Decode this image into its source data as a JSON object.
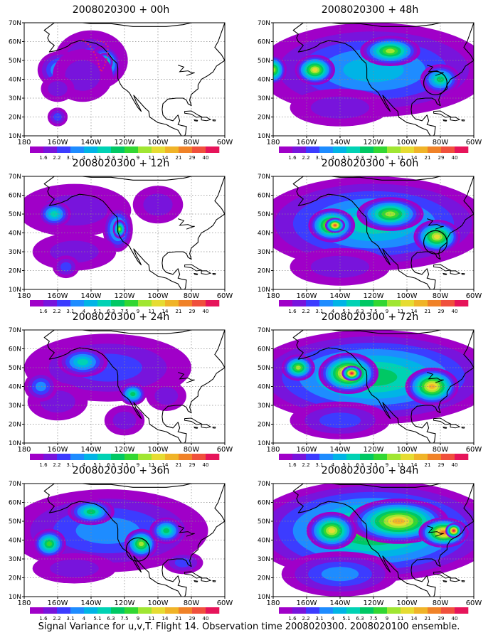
{
  "caption": "Signal Variance for u,v,T. Flight 14. Observation time 2008020300. 2008020100 ensemble.",
  "colors": {
    "background": "#ffffff",
    "land_outline": "#000000",
    "grid": "#8a8a8a",
    "marker_circle": "#000000",
    "flight_track": "#e0206a",
    "no_data": "#ffffff"
  },
  "chart_data": {
    "type": "heatmap",
    "projection": "lat-lon map (contour-filled)",
    "x_ticks": [
      "180",
      "160W",
      "140W",
      "120W",
      "100W",
      "80W",
      "60W"
    ],
    "y_ticks": [
      "10N",
      "20N",
      "30N",
      "40N",
      "50N",
      "60N",
      "70N"
    ],
    "xlim": [
      -180,
      -60
    ],
    "ylim": [
      10,
      70
    ],
    "grid": true,
    "colorbar": {
      "labels": [
        "1.6",
        "2.2",
        "3.1",
        "4",
        "5.1",
        "6.3",
        "7.5",
        "9",
        "11",
        "14",
        "21",
        "29",
        "40"
      ],
      "colors": [
        "#a000c8",
        "#7814dc",
        "#3c3cff",
        "#1e8cff",
        "#00b4e6",
        "#00d2b4",
        "#00c864",
        "#32d732",
        "#a0e632",
        "#e6dc32",
        "#f0b428",
        "#f08228",
        "#f0503c",
        "#e6145a"
      ]
    },
    "panels": [
      {
        "title": "2008020300 + 00h",
        "blobs": [
          {
            "lon": -140,
            "lat": 50,
            "rx": 22,
            "ry": 16,
            "v": 2
          },
          {
            "lon": -132,
            "lat": 48,
            "rx": 10,
            "ry": 10,
            "v": 7
          },
          {
            "lon": -132,
            "lat": 49,
            "rx": 5,
            "ry": 5,
            "v": 9
          },
          {
            "lon": -158,
            "lat": 45,
            "rx": 14,
            "ry": 10,
            "v": 4
          },
          {
            "lon": -145,
            "lat": 42,
            "rx": 18,
            "ry": 14,
            "v": 1
          },
          {
            "lon": -160,
            "lat": 35,
            "rx": 10,
            "ry": 7,
            "v": 1
          },
          {
            "lon": -160,
            "lat": 20,
            "rx": 6,
            "ry": 5,
            "v": 2
          }
        ],
        "flight_track": [
          [
            -145,
            61
          ],
          [
            -141,
            58
          ],
          [
            -138,
            54
          ],
          [
            -136,
            50
          ],
          [
            -135,
            46
          ],
          [
            -134,
            44
          ],
          [
            -132,
            47
          ],
          [
            -130,
            53
          ],
          [
            -130,
            58
          ],
          [
            -133,
            60
          ],
          [
            -138,
            61
          ]
        ],
        "circle": null
      },
      {
        "title": "2008020300 + 12h",
        "blobs": [
          {
            "lon": -150,
            "lat": 52,
            "rx": 34,
            "ry": 14,
            "v": 1
          },
          {
            "lon": -162,
            "lat": 50,
            "rx": 10,
            "ry": 7,
            "v": 5
          },
          {
            "lon": -124,
            "lat": 42,
            "rx": 9,
            "ry": 12,
            "v": 5
          },
          {
            "lon": -123,
            "lat": 42,
            "rx": 4,
            "ry": 5,
            "v": 8
          },
          {
            "lon": -150,
            "lat": 30,
            "rx": 25,
            "ry": 10,
            "v": 1
          },
          {
            "lon": -100,
            "lat": 55,
            "rx": 15,
            "ry": 10,
            "v": 1
          },
          {
            "lon": -155,
            "lat": 22,
            "rx": 8,
            "ry": 6,
            "v": 2
          }
        ],
        "flight_track": null,
        "circle": null
      },
      {
        "title": "2008020300 + 24h",
        "blobs": [
          {
            "lon": -130,
            "lat": 50,
            "rx": 50,
            "ry": 18,
            "v": 2
          },
          {
            "lon": -145,
            "lat": 53,
            "rx": 15,
            "ry": 8,
            "v": 5
          },
          {
            "lon": -115,
            "lat": 36,
            "rx": 8,
            "ry": 6,
            "v": 6
          },
          {
            "lon": -160,
            "lat": 32,
            "rx": 18,
            "ry": 10,
            "v": 1
          },
          {
            "lon": -170,
            "lat": 40,
            "rx": 10,
            "ry": 8,
            "v": 3
          },
          {
            "lon": -95,
            "lat": 35,
            "rx": 12,
            "ry": 8,
            "v": 1
          },
          {
            "lon": -120,
            "lat": 22,
            "rx": 12,
            "ry": 8,
            "v": 1
          }
        ],
        "flight_track": null,
        "circle": null
      },
      {
        "title": "2008020300 + 36h",
        "blobs": [
          {
            "lon": -130,
            "lat": 45,
            "rx": 60,
            "ry": 22,
            "v": 3
          },
          {
            "lon": -165,
            "lat": 38,
            "rx": 10,
            "ry": 8,
            "v": 7
          },
          {
            "lon": -110,
            "lat": 38,
            "rx": 10,
            "ry": 8,
            "v": 8
          },
          {
            "lon": -140,
            "lat": 55,
            "rx": 14,
            "ry": 7,
            "v": 6
          },
          {
            "lon": -95,
            "lat": 45,
            "rx": 10,
            "ry": 7,
            "v": 6
          },
          {
            "lon": -150,
            "lat": 25,
            "rx": 25,
            "ry": 8,
            "v": 1
          },
          {
            "lon": -85,
            "lat": 28,
            "rx": 12,
            "ry": 6,
            "v": 2
          }
        ],
        "flight_track": null,
        "circle": {
          "lon": -112,
          "lat": 35,
          "r": 7
        }
      },
      {
        "title": "2008020300 + 48h",
        "blobs": [
          {
            "lon": -120,
            "lat": 45,
            "rx": 70,
            "ry": 25,
            "v": 4
          },
          {
            "lon": -155,
            "lat": 45,
            "rx": 12,
            "ry": 8,
            "v": 9
          },
          {
            "lon": -180,
            "lat": 45,
            "rx": 8,
            "ry": 8,
            "v": 8
          },
          {
            "lon": -110,
            "lat": 55,
            "rx": 18,
            "ry": 8,
            "v": 8
          },
          {
            "lon": -80,
            "lat": 40,
            "rx": 12,
            "ry": 8,
            "v": 6
          },
          {
            "lon": -140,
            "lat": 25,
            "rx": 30,
            "ry": 10,
            "v": 1
          }
        ],
        "flight_track": null,
        "circle": {
          "lon": -83,
          "lat": 38,
          "r": 7
        }
      },
      {
        "title": "2008020300 + 60h",
        "blobs": [
          {
            "lon": -120,
            "lat": 45,
            "rx": 70,
            "ry": 25,
            "v": 5
          },
          {
            "lon": -145,
            "lat": 44,
            "rx": 14,
            "ry": 9,
            "v": 10
          },
          {
            "lon": -143,
            "lat": 44,
            "rx": 6,
            "ry": 4,
            "v": 12
          },
          {
            "lon": -110,
            "lat": 50,
            "rx": 20,
            "ry": 9,
            "v": 8
          },
          {
            "lon": -82,
            "lat": 38,
            "rx": 14,
            "ry": 9,
            "v": 9
          },
          {
            "lon": -140,
            "lat": 22,
            "rx": 30,
            "ry": 10,
            "v": 1
          }
        ],
        "flight_track": null,
        "circle": {
          "lon": -83,
          "lat": 35,
          "r": 7
        }
      },
      {
        "title": "2008020300 + 72h",
        "blobs": [
          {
            "lon": -120,
            "lat": 45,
            "rx": 75,
            "ry": 25,
            "v": 6
          },
          {
            "lon": -135,
            "lat": 47,
            "rx": 18,
            "ry": 11,
            "v": 11
          },
          {
            "lon": -133,
            "lat": 47,
            "rx": 6,
            "ry": 4,
            "v": 13
          },
          {
            "lon": -85,
            "lat": 40,
            "rx": 16,
            "ry": 10,
            "v": 10
          },
          {
            "lon": -165,
            "lat": 50,
            "rx": 10,
            "ry": 7,
            "v": 8
          },
          {
            "lon": -140,
            "lat": 22,
            "rx": 30,
            "ry": 10,
            "v": 2
          }
        ],
        "flight_track": null,
        "circle": null
      },
      {
        "title": "2008020300 + 84h",
        "blobs": [
          {
            "lon": -120,
            "lat": 45,
            "rx": 75,
            "ry": 27,
            "v": 7
          },
          {
            "lon": -105,
            "lat": 50,
            "rx": 30,
            "ry": 12,
            "v": 10
          },
          {
            "lon": -78,
            "lat": 44,
            "rx": 15,
            "ry": 8,
            "v": 11
          },
          {
            "lon": -72,
            "lat": 45,
            "rx": 5,
            "ry": 4,
            "v": 13
          },
          {
            "lon": -145,
            "lat": 45,
            "rx": 15,
            "ry": 10,
            "v": 9
          },
          {
            "lon": -140,
            "lat": 22,
            "rx": 35,
            "ry": 12,
            "v": 3
          }
        ],
        "flight_track": null,
        "circle": null
      }
    ]
  }
}
